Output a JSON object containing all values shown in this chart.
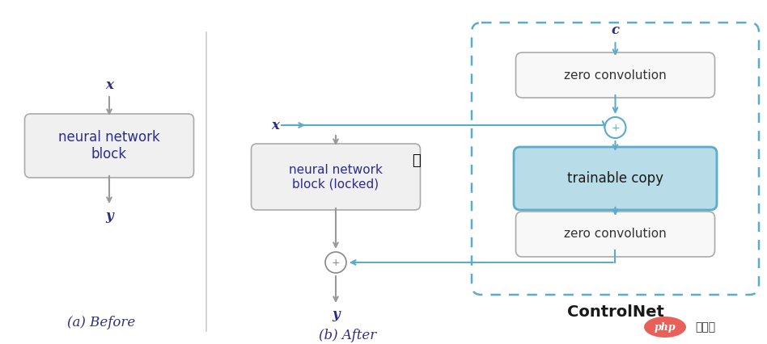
{
  "bg_color": "#ffffff",
  "text_color_dark": "#2c2c8c",
  "text_color_box": "#333333",
  "box_border_color": "#aaaaaa",
  "box_fill_light": "#f0f0f0",
  "box_fill_blue": "#b8dde8",
  "arrow_color_gray": "#999999",
  "arrow_color_blue": "#5aabcc",
  "dashed_border_color": "#5aabcc",
  "divider_color": "#cccccc",
  "label_color": "#2c2c8c",
  "title_a": "(a) Before",
  "title_b": "(b) After",
  "controlnet_label": "ControlNet",
  "php_color": "#e8605a"
}
